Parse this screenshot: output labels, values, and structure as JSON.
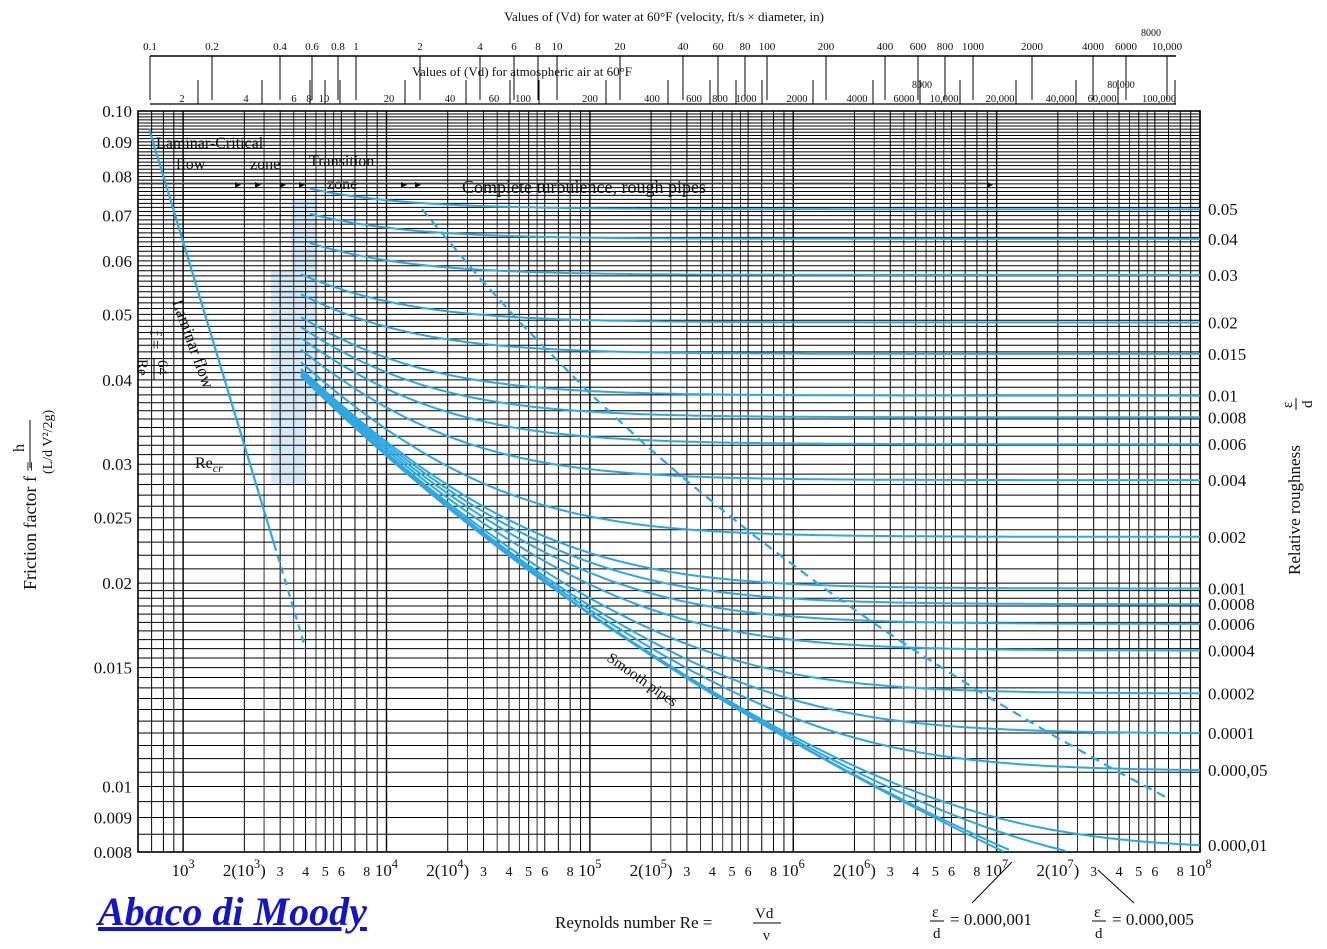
{
  "title_link": "Abaco di Moody",
  "chart_data": {
    "type": "line",
    "scale": "log-log",
    "grid": true,
    "x_axis": {
      "label_prefix": "Reynolds number Re =",
      "label_frac_num": "Vd",
      "label_frac_den": "ν",
      "range": [
        600,
        100000000
      ],
      "ticks": [
        {
          "v": 1000,
          "t": "10^3"
        },
        {
          "v": 2000,
          "t": "2(10^3)"
        },
        {
          "v": 3000,
          "t": "3"
        },
        {
          "v": 4000,
          "t": "4"
        },
        {
          "v": 5000,
          "t": "5"
        },
        {
          "v": 6000,
          "t": "6"
        },
        {
          "v": 8000,
          "t": "8"
        },
        {
          "v": 10000,
          "t": "10^4"
        },
        {
          "v": 20000,
          "t": "2(10^4)"
        },
        {
          "v": 30000,
          "t": "3"
        },
        {
          "v": 40000,
          "t": "4"
        },
        {
          "v": 50000,
          "t": "5"
        },
        {
          "v": 60000,
          "t": "6"
        },
        {
          "v": 80000,
          "t": "8"
        },
        {
          "v": 100000,
          "t": "10^5"
        },
        {
          "v": 200000,
          "t": "2(10^5)"
        },
        {
          "v": 300000,
          "t": "3"
        },
        {
          "v": 400000,
          "t": "4"
        },
        {
          "v": 500000,
          "t": "5"
        },
        {
          "v": 600000,
          "t": "6"
        },
        {
          "v": 800000,
          "t": "8"
        },
        {
          "v": 1000000,
          "t": "10^6"
        },
        {
          "v": 2000000,
          "t": "2(10^6)"
        },
        {
          "v": 3000000,
          "t": "3"
        },
        {
          "v": 4000000,
          "t": "4"
        },
        {
          "v": 5000000,
          "t": "5"
        },
        {
          "v": 6000000,
          "t": "6"
        },
        {
          "v": 8000000,
          "t": "8"
        },
        {
          "v": 10000000,
          "t": "10^7"
        },
        {
          "v": 20000000,
          "t": "2(10^7)"
        },
        {
          "v": 30000000,
          "t": "3"
        },
        {
          "v": 40000000,
          "t": "4"
        },
        {
          "v": 50000000,
          "t": "5"
        },
        {
          "v": 60000000,
          "t": "6"
        },
        {
          "v": 80000000,
          "t": "8"
        },
        {
          "v": 100000000,
          "t": "10^8"
        }
      ]
    },
    "y_axis": {
      "label_prefix": "Friction factor f =",
      "range": [
        0.008,
        0.1
      ],
      "ticks": [
        {
          "v": 0.1,
          "t": "0.10"
        },
        {
          "v": 0.09,
          "t": "0.09"
        },
        {
          "v": 0.08,
          "t": "0.08"
        },
        {
          "v": 0.07,
          "t": "0.07"
        },
        {
          "v": 0.06,
          "t": "0.06"
        },
        {
          "v": 0.05,
          "t": "0.05"
        },
        {
          "v": 0.04,
          "t": "0.04"
        },
        {
          "v": 0.03,
          "t": "0.03"
        },
        {
          "v": 0.025,
          "t": "0.025"
        },
        {
          "v": 0.02,
          "t": "0.02"
        },
        {
          "v": 0.015,
          "t": "0.015"
        },
        {
          "v": 0.01,
          "t": "0.01"
        },
        {
          "v": 0.009,
          "t": "0.009"
        },
        {
          "v": 0.008,
          "t": "0.008"
        }
      ]
    },
    "right_axis": {
      "label": "Relative roughness",
      "label_frac_num": "ε",
      "label_frac_den": "d"
    },
    "top_axis_water": {
      "label": "Values of (Vd) for water at 60°F (velocity, ft/s × diameter, in)",
      "ticks": [
        "0.1",
        "0.2",
        "0.4",
        "0.6",
        "0.8",
        "1",
        "2",
        "4",
        "6",
        "8",
        "10",
        "20",
        "40",
        "60",
        "80",
        "100",
        "200",
        "400",
        "600",
        "800",
        "1000",
        "2000",
        "4000",
        "6000",
        "10,000"
      ],
      "extra_label": "8000"
    },
    "top_axis_air": {
      "label": "Values of (Vd) for atmospheric air at 60°F",
      "ticks": [
        "2",
        "4",
        "6",
        "8",
        "10",
        "20",
        "40",
        "60",
        "100",
        "200",
        "400",
        "600",
        "800",
        "1000",
        "2000",
        "4000",
        "6000",
        "10,000",
        "20,000",
        "40,000",
        "60,000",
        "100,000"
      ],
      "extra_labels": [
        "8000",
        "80,000"
      ]
    },
    "laminar_series": {
      "name": "Laminar flow",
      "formula_left": "f =",
      "formula_num": "64",
      "formula_den": "Re",
      "re_start": 680,
      "re_end": 4000
    },
    "recr_label": "Re",
    "recr_sub": "cr",
    "smooth_label": "Smooth pipes",
    "roughness_series": [
      {
        "eps": 0.05,
        "label": "0.05"
      },
      {
        "eps": 0.04,
        "label": "0.04"
      },
      {
        "eps": 0.03,
        "label": "0.03"
      },
      {
        "eps": 0.02,
        "label": "0.02"
      },
      {
        "eps": 0.015,
        "label": "0.015"
      },
      {
        "eps": 0.01,
        "label": "0.01"
      },
      {
        "eps": 0.008,
        "label": "0.008"
      },
      {
        "eps": 0.006,
        "label": "0.006"
      },
      {
        "eps": 0.004,
        "label": "0.004"
      },
      {
        "eps": 0.002,
        "label": "0.002"
      },
      {
        "eps": 0.001,
        "label": "0.001"
      },
      {
        "eps": 0.0008,
        "label": "0.0008"
      },
      {
        "eps": 0.0006,
        "label": "0.0006"
      },
      {
        "eps": 0.0004,
        "label": "0.0004"
      },
      {
        "eps": 0.0002,
        "label": "0.0002"
      },
      {
        "eps": 0.0001,
        "label": "0.0001"
      },
      {
        "eps": 5e-05,
        "label": "0.000,05"
      },
      {
        "eps": 1e-05,
        "label": "0.000,01"
      },
      {
        "eps": 5e-06,
        "label": "0.000,005"
      },
      {
        "eps": 1e-06,
        "label": "0.000,001"
      }
    ],
    "eps_callouts": [
      {
        "label": "= 0.000,001",
        "frac_num": "ε",
        "frac_den": "d"
      },
      {
        "label": "= 0.000,005",
        "frac_num": "ε",
        "frac_den": "d"
      }
    ],
    "regions": [
      "Laminar-",
      "Critical",
      "flow",
      "zone",
      "Transition",
      "zone",
      "Complete turbulence, rough pipes"
    ],
    "colors": {
      "curve": "#2ea8e2",
      "grid": "#000000",
      "shade": "#d6e9f7"
    }
  }
}
